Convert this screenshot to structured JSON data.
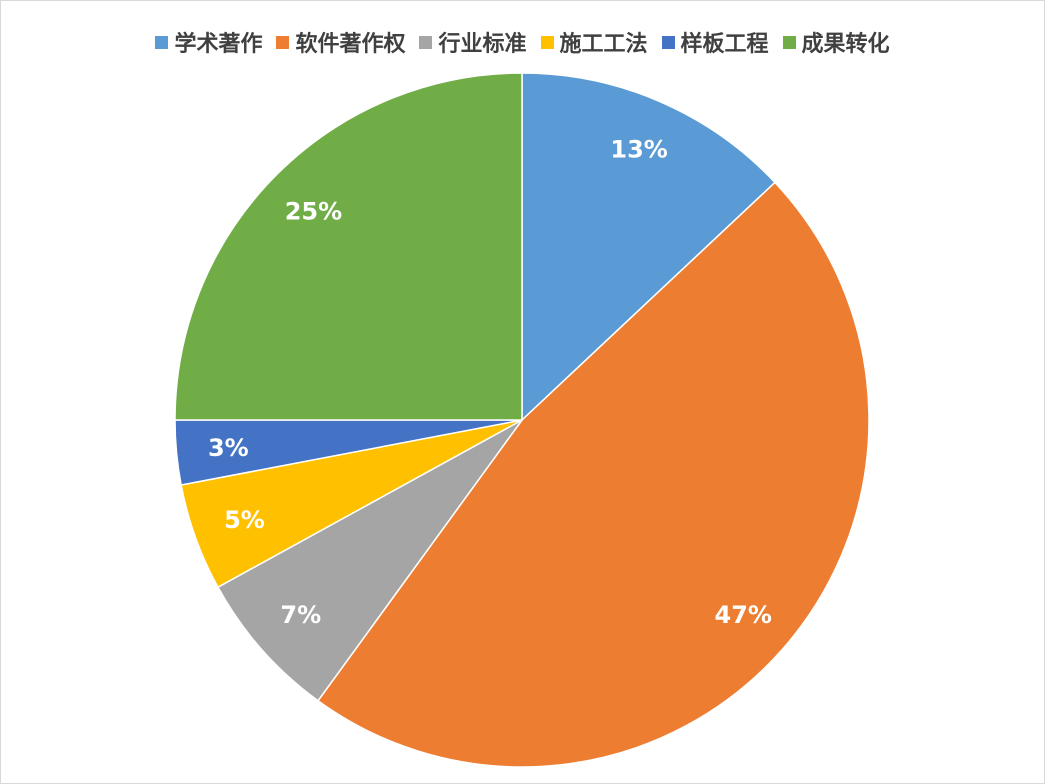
{
  "chart_data": {
    "type": "pie",
    "title": "",
    "legend_position": "top",
    "categories": [
      "学术著作",
      "软件著作权",
      "行业标准",
      "施工工法",
      "样板工程",
      "成果转化"
    ],
    "values": [
      13,
      47,
      7,
      5,
      3,
      25
    ],
    "labels": [
      "13%",
      "47%",
      "7%",
      "5%",
      "3%",
      "25%"
    ],
    "colors": [
      "#5B9BD5",
      "#ED7D31",
      "#A5A5A5",
      "#FFC000",
      "#4472C4",
      "#70AD47"
    ],
    "start_angle_deg": 0,
    "direction": "clockwise"
  }
}
